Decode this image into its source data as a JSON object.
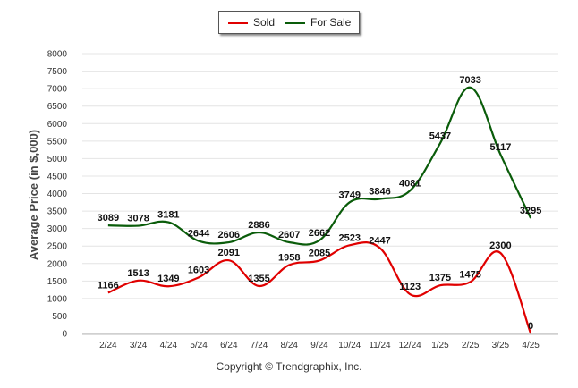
{
  "legend": {
    "items": [
      {
        "label": "Sold",
        "color": "#e00000"
      },
      {
        "label": "For Sale",
        "color": "#0a5c0a"
      }
    ]
  },
  "footer": {
    "copyright": "Copyright © Trendgraphix, Inc."
  },
  "chart_data": {
    "type": "line",
    "title": "",
    "xlabel": "",
    "ylabel": "Average Price (in $,000)",
    "ylim": [
      0,
      8000
    ],
    "yticks": [
      0,
      500,
      1000,
      1500,
      2000,
      2500,
      3000,
      3500,
      4000,
      4500,
      5000,
      5500,
      6000,
      6500,
      7000,
      7500,
      8000
    ],
    "grid": true,
    "legend_position": "top-center",
    "categories": [
      "2/24",
      "3/24",
      "4/24",
      "5/24",
      "6/24",
      "7/24",
      "8/24",
      "9/24",
      "10/24",
      "11/24",
      "12/24",
      "1/25",
      "2/25",
      "3/25",
      "4/25"
    ],
    "series": [
      {
        "name": "Sold",
        "color": "#e00000",
        "values": [
          1166,
          1513,
          1349,
          1603,
          2091,
          1355,
          1958,
          2085,
          2523,
          2447,
          1123,
          1375,
          1475,
          2300,
          0
        ]
      },
      {
        "name": "For Sale",
        "color": "#0a5c0a",
        "values": [
          3089,
          3078,
          3181,
          2644,
          2606,
          2886,
          2607,
          2662,
          3749,
          3846,
          4081,
          5437,
          7033,
          5117,
          3295
        ]
      }
    ]
  }
}
